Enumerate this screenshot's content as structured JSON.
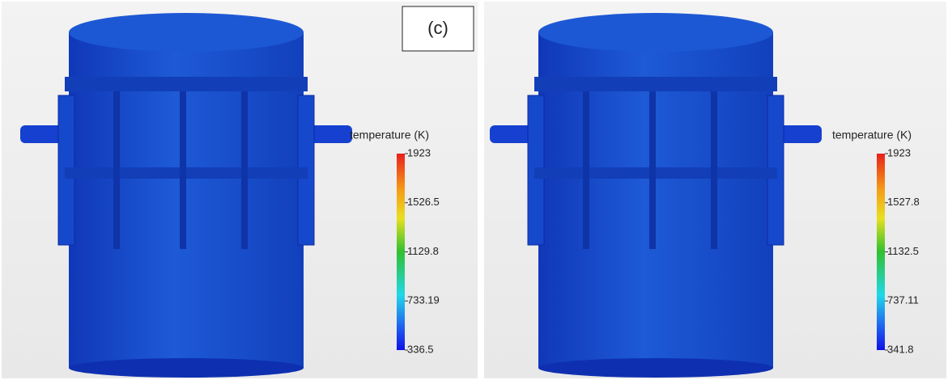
{
  "panels": [
    {
      "label": "(c)",
      "colorbar": {
        "title": "temperature (K)",
        "ticks": [
          1923,
          1526.5,
          1129.8,
          733.19,
          336.5
        ]
      }
    },
    {
      "colorbar": {
        "title": "temperature (K)",
        "ticks": [
          1923,
          1527.8,
          1132.5,
          737.11,
          341.8
        ]
      }
    }
  ]
}
